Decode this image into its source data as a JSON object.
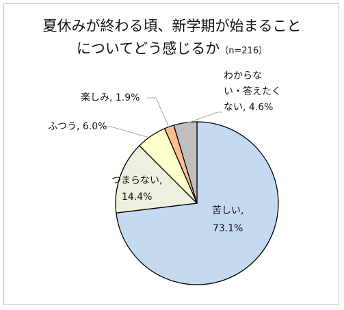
{
  "chart_data": {
    "type": "pie",
    "title": "夏休みが終わる頃、新学期が始まることについてどう感じるか",
    "title_line1": "夏休みが終わる頃、新学期が始まること",
    "title_line2": "についてどう感じるか",
    "sample_note": "（n=216）",
    "start_angle": "top (12 o'clock), clockwise",
    "slices": [
      {
        "label": "苦しい",
        "value": 73.1,
        "value_text": "73.1%",
        "color": "#c5d9f1"
      },
      {
        "label": "つまらない",
        "value": 14.4,
        "value_text": "14.4%",
        "color": "#ebf1de"
      },
      {
        "label": "ふつう",
        "value": 6.0,
        "value_text": "6.0%",
        "color": "#ffffcc"
      },
      {
        "label": "楽しみ",
        "value": 1.9,
        "value_text": "1.9%",
        "color": "#fac090"
      },
      {
        "label": "わからない・答えたくない",
        "value": 4.6,
        "value_text": "4.6%",
        "color": "#bfbfbf"
      }
    ]
  },
  "labels": {
    "kurushii_l1": "苦しい,",
    "kurushii_l2": "73.1%",
    "tsumaranai_l1": "つまらない,",
    "tsumaranai_l2": "14.4%",
    "futsuu": "ふつう, 6.0%",
    "tanoshimi": "楽しみ, 1.9%",
    "wakaranai_l1": "わからな",
    "wakaranai_l2": "い・答えたく",
    "wakaranai_l3": "ない, 4.6%"
  }
}
